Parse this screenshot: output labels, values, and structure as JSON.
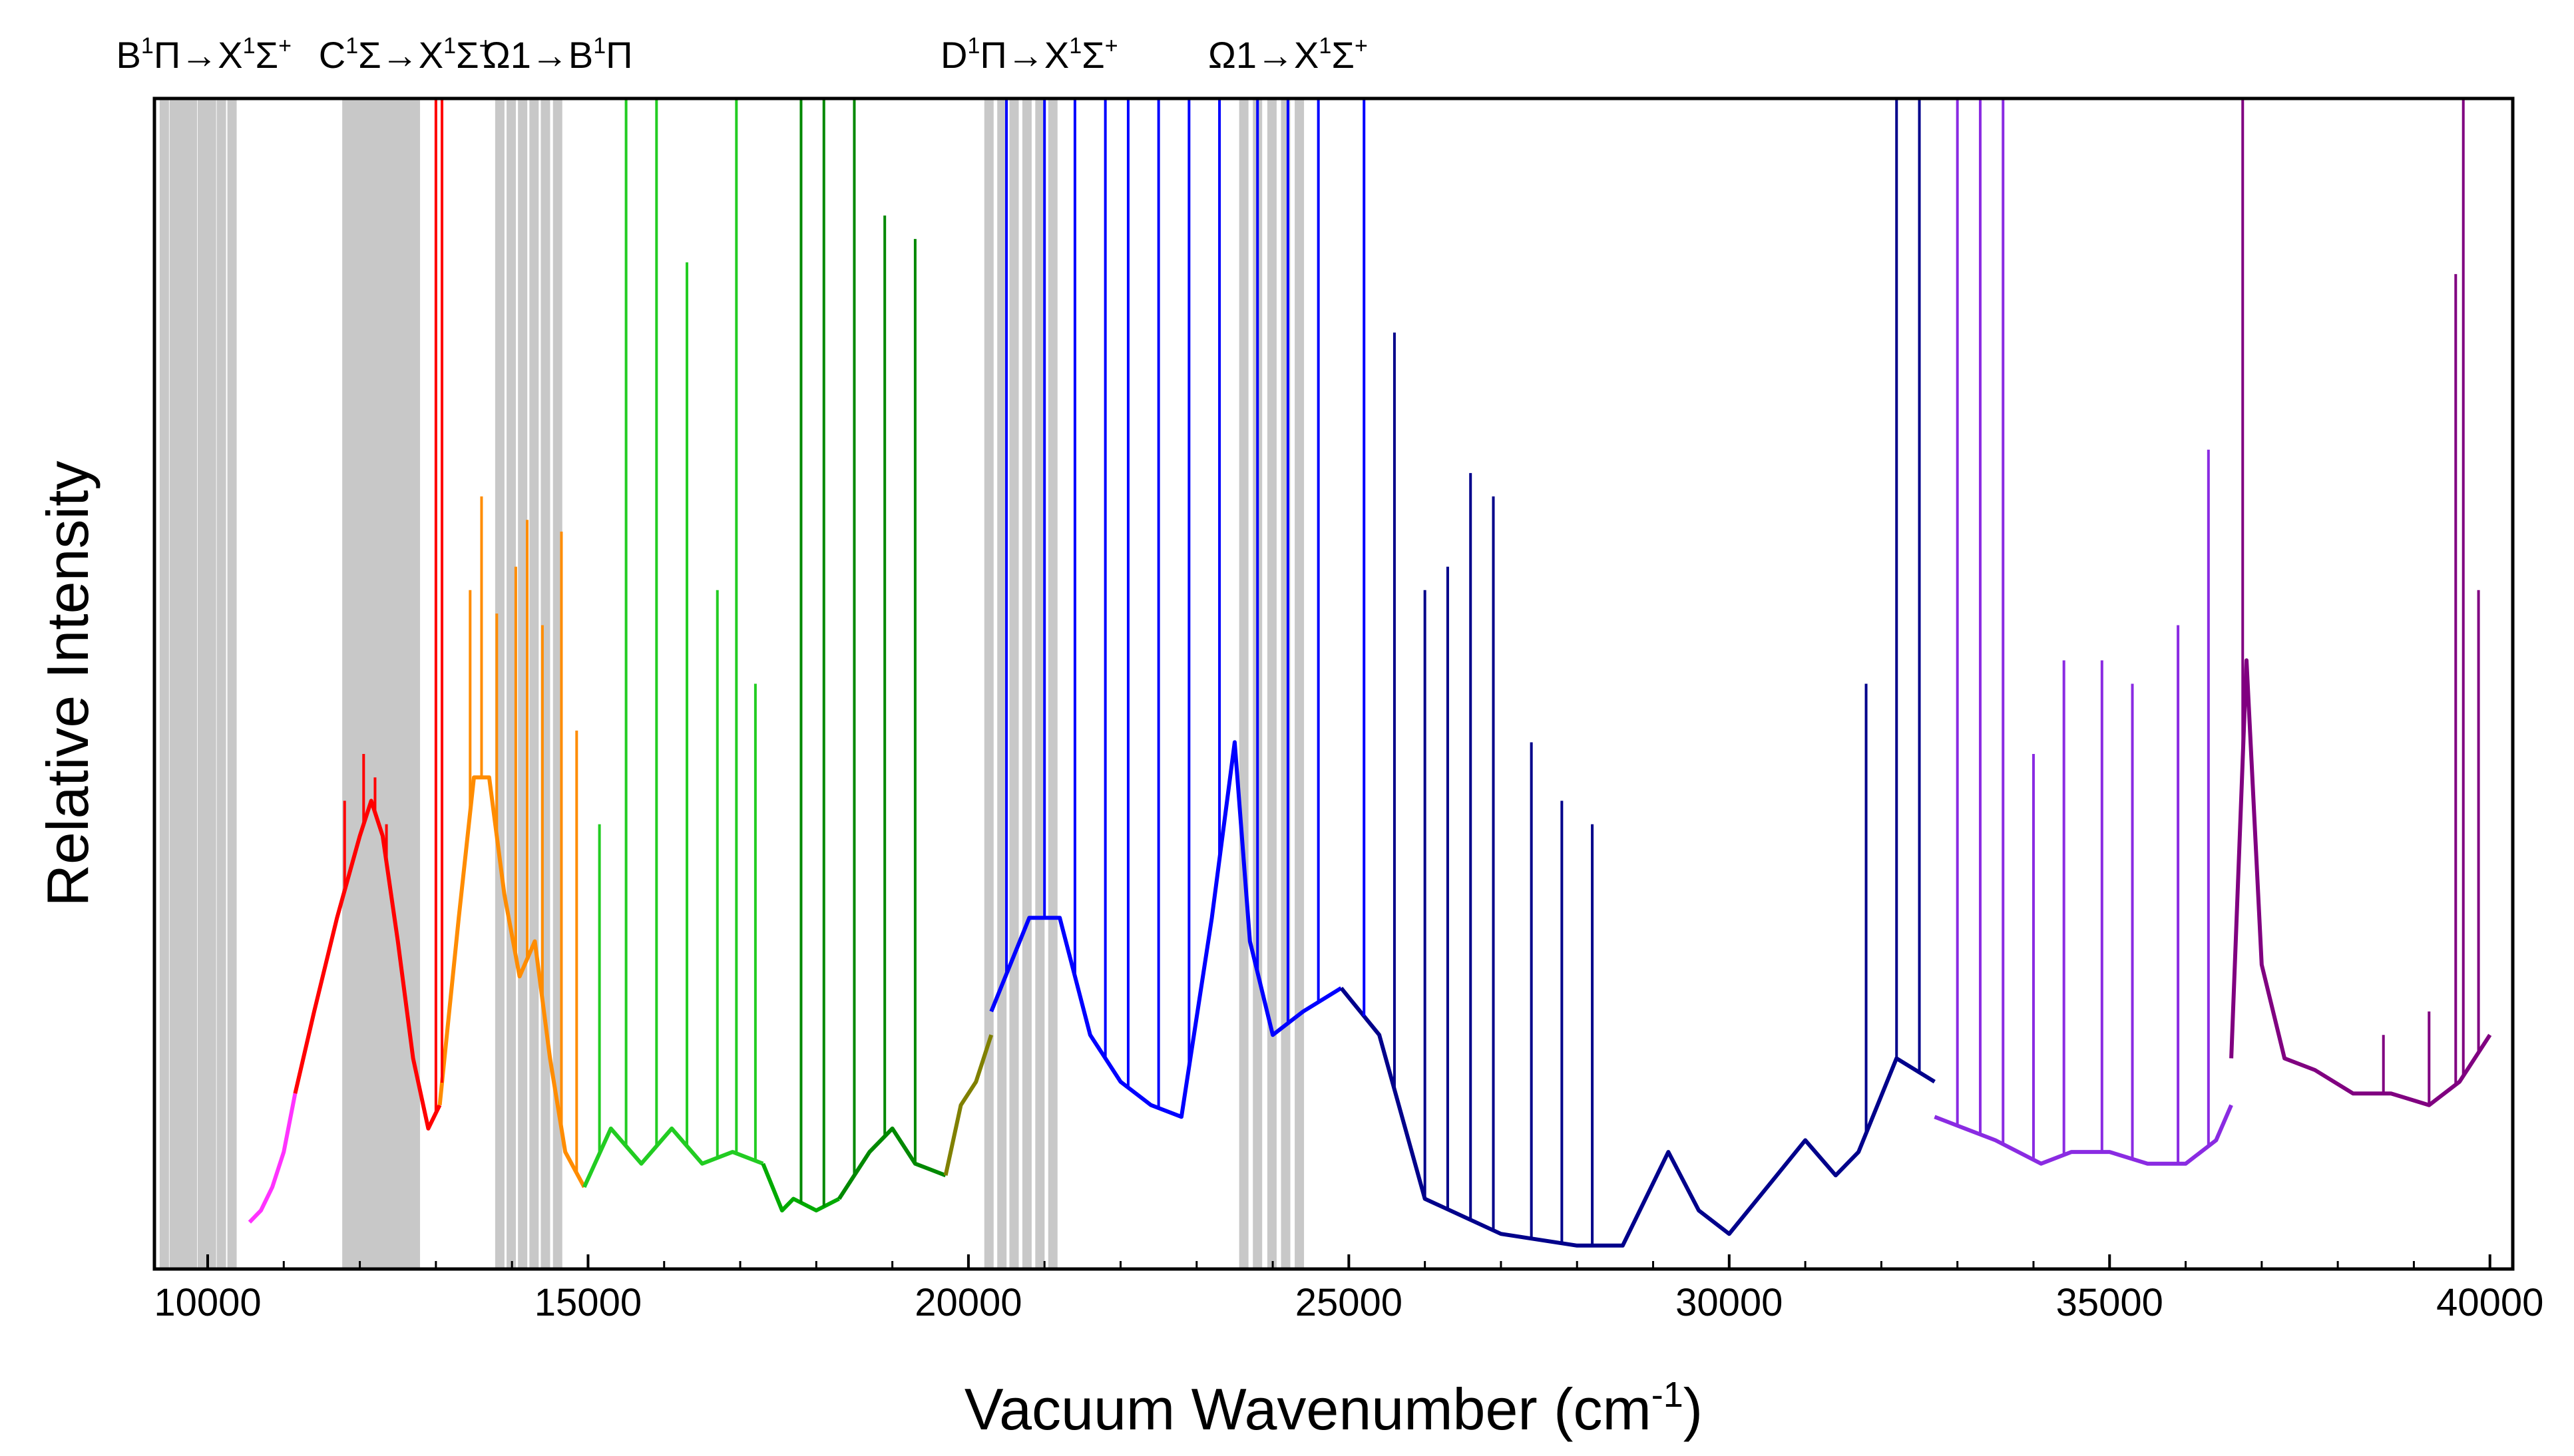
{
  "chart_data": {
    "type": "line",
    "title": "",
    "xlabel": "Vacuum Wavenumber (cm",
    "xlabel_sup": "-1",
    "xlabel_end": ")",
    "ylabel": "Relative Intensity",
    "xlim": [
      9300,
      40300
    ],
    "ylim": [
      0,
      1
    ],
    "x_ticks": [
      10000,
      15000,
      20000,
      25000,
      30000,
      35000,
      40000
    ],
    "x_tick_labels": [
      "10000",
      "15000",
      "20000",
      "25000",
      "30000",
      "35000",
      "40000"
    ],
    "y_ticks_shown": false,
    "grid": false,
    "legend": "none",
    "band_labels": [
      {
        "parts": [
          [
            "B",
            ""
          ],
          [
            "1",
            "sup"
          ],
          [
            "Π→X",
            ""
          ],
          [
            "1",
            "sup"
          ],
          [
            "Σ",
            ""
          ],
          [
            "+",
            "sup"
          ]
        ],
        "x": 9950
      },
      {
        "parts": [
          [
            "C",
            ""
          ],
          [
            "1",
            "sup"
          ],
          [
            "Σ→X",
            ""
          ],
          [
            "1",
            "sup"
          ],
          [
            "Σ",
            ""
          ],
          [
            "+",
            "sup"
          ]
        ],
        "x": 12600
      },
      {
        "parts": [
          [
            "Ω1→B",
            ""
          ],
          [
            "1",
            "sup"
          ],
          [
            "Π",
            ""
          ]
        ],
        "x": 14600
      },
      {
        "parts": [
          [
            "D",
            ""
          ],
          [
            "1",
            "sup"
          ],
          [
            "Π→X",
            ""
          ],
          [
            "1",
            "sup"
          ],
          [
            "Σ",
            ""
          ],
          [
            "+",
            "sup"
          ]
        ],
        "x": 20800
      },
      {
        "parts": [
          [
            "Ω1→X",
            ""
          ],
          [
            "1",
            "sup"
          ],
          [
            "Σ",
            ""
          ],
          [
            "+",
            "sup"
          ]
        ],
        "x": 24200
      }
    ],
    "gray_band_lines": [
      [
        9430,
        9560,
        9680,
        9800,
        9930,
        10050,
        10180,
        10320
      ],
      [
        11830,
        11950,
        12060,
        12180,
        12290,
        12400,
        12510,
        12620,
        12730
      ],
      [
        13840,
        13990,
        14140,
        14290,
        14440,
        14600
      ],
      [
        20270,
        20440,
        20600,
        20770,
        20940,
        21110
      ],
      [
        23620,
        23800,
        23990,
        24170,
        24350
      ]
    ],
    "series": [
      {
        "color": "#ff33ff",
        "x": [
          10550,
          10700,
          10850,
          11000,
          11150
        ],
        "y": [
          0.04,
          0.05,
          0.07,
          0.1,
          0.15
        ]
      },
      {
        "color": "#ff0000",
        "x": [
          11150,
          11400,
          11700,
          12000,
          12150,
          12300,
          12500,
          12700,
          12900,
          13050
        ],
        "y": [
          0.15,
          0.22,
          0.3,
          0.37,
          0.4,
          0.37,
          0.28,
          0.18,
          0.12,
          0.14
        ]
      },
      {
        "color": "#ff8c00",
        "x": [
          13050,
          13300,
          13500,
          13700,
          13900,
          14100,
          14300,
          14500,
          14700,
          14950
        ],
        "y": [
          0.14,
          0.3,
          0.42,
          0.42,
          0.32,
          0.25,
          0.28,
          0.18,
          0.1,
          0.07
        ]
      },
      {
        "color": "#22cc22",
        "x": [
          14950,
          15300,
          15700,
          16100,
          16500,
          16900,
          17300
        ],
        "y": [
          0.07,
          0.12,
          0.09,
          0.12,
          0.09,
          0.1,
          0.09
        ]
      },
      {
        "color": "#00aa00",
        "x": [
          17300,
          17550,
          17700,
          18000,
          18300
        ],
        "y": [
          0.09,
          0.05,
          0.06,
          0.05,
          0.06
        ]
      },
      {
        "color": "#008800",
        "x": [
          18300,
          18700,
          19000,
          19300,
          19700
        ],
        "y": [
          0.06,
          0.1,
          0.12,
          0.09,
          0.08
        ]
      },
      {
        "color": "#808000",
        "x": [
          19700,
          19900,
          20100,
          20300
        ],
        "y": [
          0.08,
          0.14,
          0.16,
          0.2
        ]
      },
      {
        "color": "#0000ff",
        "x": [
          20300,
          20800,
          21200,
          21600,
          22000,
          22400,
          22800,
          23200,
          23500,
          23700,
          24000,
          24400,
          24900
        ],
        "y": [
          0.22,
          0.3,
          0.3,
          0.2,
          0.16,
          0.14,
          0.13,
          0.3,
          0.45,
          0.28,
          0.2,
          0.22,
          0.24
        ]
      },
      {
        "color": "#00008b",
        "x": [
          24900,
          25400,
          26000,
          27000,
          28000,
          28600,
          29200,
          29600,
          30000,
          30500,
          31000,
          31400,
          31700,
          32200,
          32700
        ],
        "y": [
          0.24,
          0.2,
          0.06,
          0.03,
          0.02,
          0.02,
          0.1,
          0.05,
          0.03,
          0.07,
          0.11,
          0.08,
          0.1,
          0.18,
          0.16
        ]
      },
      {
        "color": "#8a2be2",
        "x": [
          32700,
          33100,
          33500,
          34100,
          34500,
          35000,
          35500,
          36000,
          36400,
          36600
        ],
        "y": [
          0.13,
          0.12,
          0.11,
          0.09,
          0.1,
          0.1,
          0.09,
          0.09,
          0.11,
          0.14
        ]
      },
      {
        "color": "#800080",
        "x": [
          36600,
          36800,
          37000,
          37300,
          37700,
          38200,
          38700,
          39200,
          39600,
          40000
        ],
        "y": [
          0.18,
          0.52,
          0.26,
          0.18,
          0.17,
          0.15,
          0.15,
          0.14,
          0.16,
          0.2
        ]
      }
    ],
    "spikes": [
      {
        "color": "#ff0000",
        "x": [
          11800,
          12050,
          12200,
          12350,
          13000,
          13080
        ],
        "y": [
          0.4,
          0.44,
          0.42,
          0.38,
          1.0,
          1.0
        ]
      },
      {
        "color": "#ff8c00",
        "x": [
          13450,
          13600,
          13800,
          14050,
          14200,
          14400,
          14650,
          14850
        ],
        "y": [
          0.58,
          0.66,
          0.56,
          0.6,
          0.64,
          0.55,
          0.63,
          0.46
        ]
      },
      {
        "color": "#22cc22",
        "x": [
          15150,
          15500,
          15900,
          16300,
          16700,
          16950,
          17200
        ],
        "y": [
          0.38,
          1.0,
          1.0,
          0.86,
          0.58,
          1.0,
          0.5
        ]
      },
      {
        "color": "#008800",
        "x": [
          17800,
          18100,
          18500,
          18900,
          19300
        ],
        "y": [
          1.0,
          1.0,
          1.0,
          0.9,
          0.88
        ]
      },
      {
        "color": "#0000ff",
        "x": [
          20500,
          21000,
          21400,
          21800,
          22100,
          22500,
          22900,
          23300,
          23800,
          24200,
          24600,
          25200
        ],
        "y": [
          1.0,
          1.0,
          1.0,
          1.0,
          1.0,
          1.0,
          1.0,
          1.0,
          1.0,
          1.0,
          1.0,
          1.0
        ]
      },
      {
        "color": "#00008b",
        "x": [
          25600,
          26000,
          26300,
          26600,
          26900,
          27400,
          27800,
          28200,
          31800,
          32200,
          32500
        ],
        "y": [
          0.8,
          0.58,
          0.6,
          0.68,
          0.66,
          0.45,
          0.4,
          0.38,
          0.5,
          1.0,
          1.0
        ]
      },
      {
        "color": "#8a2be2",
        "x": [
          33000,
          33300,
          33600,
          34000,
          34400,
          34900,
          35300,
          35900,
          36300
        ],
        "y": [
          1.0,
          1.0,
          1.0,
          0.44,
          0.52,
          0.52,
          0.5,
          0.55,
          0.7
        ]
      },
      {
        "color": "#800080",
        "x": [
          36750,
          38600,
          39200,
          39550,
          39650,
          39850
        ],
        "y": [
          1.0,
          0.2,
          0.22,
          0.85,
          1.0,
          0.58
        ]
      }
    ]
  }
}
